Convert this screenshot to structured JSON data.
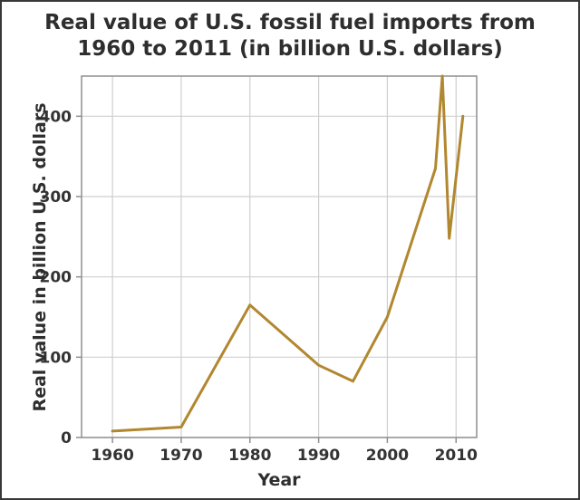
{
  "figure": {
    "title_lines": [
      "Real value of U.S. fossil fuel imports from",
      "1960 to 2011 (in billion U.S. dollars)"
    ]
  },
  "chart_data": {
    "type": "line",
    "title": "Real value of U.S. fossil fuel imports from 1960 to 2011 (in billion U.S. dollars)",
    "xlabel": "Year",
    "ylabel": "Real value in billion U.S. dollars",
    "x": [
      1960,
      1970,
      1980,
      1990,
      1995,
      2000,
      2007,
      2008,
      2009,
      2011
    ],
    "y": [
      8,
      13,
      165,
      90,
      70,
      150,
      335,
      450,
      248,
      400
    ],
    "xlim": [
      1955.5,
      2013
    ],
    "ylim": [
      0,
      450
    ],
    "xticks": [
      1960,
      1970,
      1980,
      1990,
      2000,
      2010
    ],
    "yticks": [
      0,
      100,
      200,
      300,
      400
    ],
    "grid": true,
    "legend_position": "none",
    "colors": {
      "line": "#b1872f",
      "grid": "#cfcfcf",
      "spine": "#8f8f8f",
      "text": "#333333",
      "background": "#ffffff"
    }
  }
}
